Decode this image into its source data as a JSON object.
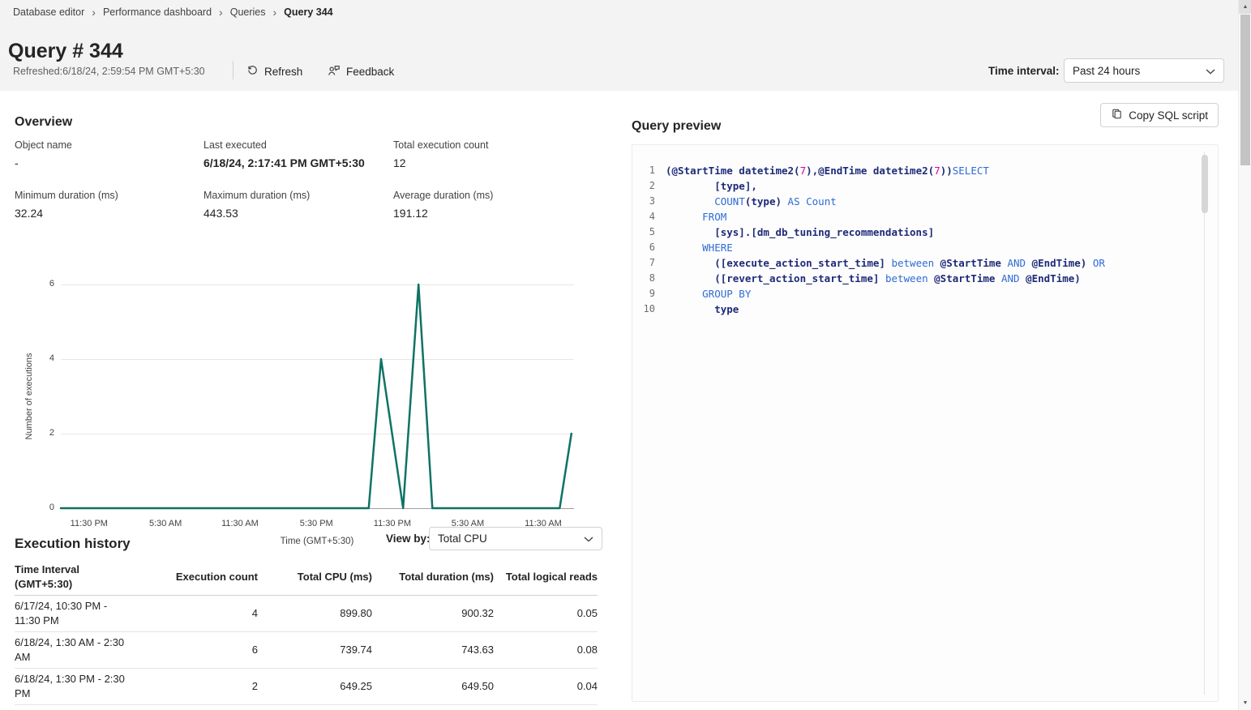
{
  "breadcrumb": {
    "items": [
      "Database editor",
      "Performance dashboard",
      "Queries",
      "Query 344"
    ]
  },
  "header": {
    "title": "Query # 344",
    "refreshed": "Refreshed:6/18/24, 2:59:54 PM GMT+5:30",
    "refresh_label": "Refresh",
    "feedback_label": "Feedback",
    "time_interval_label": "Time interval:",
    "time_interval_value": "Past 24 hours"
  },
  "overview": {
    "heading": "Overview",
    "stats": [
      {
        "label": "Object name",
        "value": "-"
      },
      {
        "label": "Last executed",
        "value": "6/18/24, 2:17:41 PM GMT+5:30",
        "strong": true
      },
      {
        "label": "Total execution count",
        "value": "12"
      },
      {
        "label": "Minimum duration (ms)",
        "value": "32.24"
      },
      {
        "label": "Maximum duration (ms)",
        "value": "443.53"
      },
      {
        "label": "Average duration (ms)",
        "value": "191.12"
      }
    ]
  },
  "chart_data": {
    "type": "line",
    "ylabel": "Number of executions",
    "xlabel": "Time (GMT+5:30)",
    "y_ticks": [
      0,
      2,
      4,
      6
    ],
    "ylim": [
      0,
      6
    ],
    "x_ticks": [
      {
        "label": "11:30 PM",
        "f": 0.055
      },
      {
        "label": "5:30 AM",
        "f": 0.204
      },
      {
        "label": "11:30 AM",
        "f": 0.349
      },
      {
        "label": "5:30 PM",
        "f": 0.498
      },
      {
        "label": "11:30 PM",
        "f": 0.646
      },
      {
        "label": "5:30 AM",
        "f": 0.793
      },
      {
        "label": "11:30 AM",
        "f": 0.94
      }
    ],
    "points": [
      [
        0.0,
        0
      ],
      [
        0.6,
        0
      ],
      [
        0.624,
        4
      ],
      [
        0.667,
        0
      ],
      [
        0.697,
        6
      ],
      [
        0.724,
        0
      ],
      [
        0.972,
        0
      ],
      [
        0.995,
        2
      ]
    ],
    "line_color": "#0e7364",
    "grid": true,
    "annotation": "Spikes: 4 executions at 6/17 10:30-11:30 PM, 6 at 6/18 1:30-2:30 AM, 2 at 6/18 1:30-2:30 PM, otherwise 0"
  },
  "execution_history": {
    "heading": "Execution history",
    "view_by_label": "View by:",
    "view_by_value": "Total CPU",
    "columns": [
      "Time Interval (GMT+5:30)",
      "Execution count",
      "Total CPU (ms)",
      "Total duration (ms)",
      "Total logical reads"
    ],
    "rows": [
      [
        "6/17/24, 10:30 PM - 11:30 PM",
        "4",
        "899.80",
        "900.32",
        "0.05"
      ],
      [
        "6/18/24, 1:30 AM - 2:30 AM",
        "6",
        "739.74",
        "743.63",
        "0.08"
      ],
      [
        "6/18/24, 1:30 PM - 2:30 PM",
        "2",
        "649.25",
        "649.50",
        "0.04"
      ]
    ]
  },
  "query_preview": {
    "heading": "Query preview",
    "copy_button_label": "Copy SQL script",
    "token_colors": {
      "keyword": "#2e6bd6",
      "identifier": "#1e2a78",
      "number": "#e3008c"
    },
    "lines": [
      {
        "num": "1",
        "segs": [
          {
            "s": "n",
            "t": "(@StartTime datetime2("
          },
          {
            "s": "m",
            "t": "7"
          },
          {
            "s": "n",
            "t": "),@EndTime datetime2("
          },
          {
            "s": "m",
            "t": "7"
          },
          {
            "s": "n",
            "t": "))"
          },
          {
            "s": "k",
            "t": "SELECT"
          }
        ]
      },
      {
        "num": "2",
        "segs": [
          {
            "s": "n",
            "t": "        [type],"
          }
        ]
      },
      {
        "num": "3",
        "segs": [
          {
            "s": "p",
            "t": "        "
          },
          {
            "s": "k",
            "t": "COUNT"
          },
          {
            "s": "n",
            "t": "(type)"
          },
          {
            "s": "k",
            "t": " AS Count"
          }
        ]
      },
      {
        "num": "4",
        "segs": [
          {
            "s": "k",
            "t": "      FROM"
          }
        ]
      },
      {
        "num": "5",
        "segs": [
          {
            "s": "n",
            "t": "        [sys].[dm_db_tuning_recommendations]"
          }
        ]
      },
      {
        "num": "6",
        "segs": [
          {
            "s": "k",
            "t": "      WHERE"
          }
        ]
      },
      {
        "num": "7",
        "segs": [
          {
            "s": "p",
            "t": "        "
          },
          {
            "s": "n",
            "t": "([execute_action_start_time]"
          },
          {
            "s": "k",
            "t": " between "
          },
          {
            "s": "n",
            "t": "@StartTime"
          },
          {
            "s": "k",
            "t": " AND "
          },
          {
            "s": "n",
            "t": "@EndTime)"
          },
          {
            "s": "k",
            "t": " OR"
          }
        ]
      },
      {
        "num": "8",
        "segs": [
          {
            "s": "p",
            "t": "        "
          },
          {
            "s": "n",
            "t": "([revert_action_start_time]"
          },
          {
            "s": "k",
            "t": " between "
          },
          {
            "s": "n",
            "t": "@StartTime"
          },
          {
            "s": "k",
            "t": " AND "
          },
          {
            "s": "n",
            "t": "@EndTime)"
          }
        ]
      },
      {
        "num": "9",
        "segs": [
          {
            "s": "k",
            "t": "      GROUP BY"
          }
        ]
      },
      {
        "num": "10",
        "segs": [
          {
            "s": "n",
            "t": "        type"
          }
        ]
      }
    ]
  },
  "scrollbar": {
    "up": "▲",
    "down": "▼"
  }
}
